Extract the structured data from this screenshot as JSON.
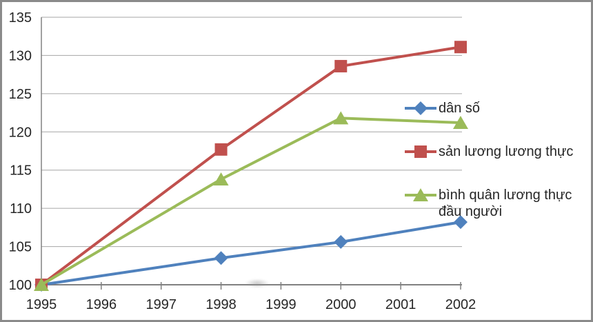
{
  "chart_data": {
    "type": "line",
    "title": "",
    "xlabel": "",
    "ylabel": "",
    "x": [
      1995,
      1998,
      2000,
      2002
    ],
    "series": [
      {
        "name": "dân số",
        "slug": "dan-so",
        "color": "#4F81BD",
        "marker": "diamond",
        "values": [
          100,
          103.5,
          105.6,
          108.2
        ]
      },
      {
        "name": "sản lương lương thực",
        "slug": "san-luong-luong-thuc",
        "color": "#C0504D",
        "marker": "square",
        "values": [
          100,
          117.7,
          128.6,
          131.1
        ]
      },
      {
        "name": "bình quân lương thực đầu người",
        "slug": "binh-quan-luong-thuc-dau-nguoi",
        "color": "#9BBB59",
        "marker": "triangle",
        "values": [
          100,
          113.8,
          121.8,
          121.2
        ]
      }
    ],
    "x_ticks": [
      1995,
      1996,
      1997,
      1998,
      1999,
      2000,
      2001,
      2002
    ],
    "y_ticks": [
      100,
      105,
      110,
      115,
      120,
      125,
      130,
      135
    ],
    "ylim": [
      100,
      135
    ],
    "xlim": [
      1995,
      2002
    ],
    "grid": true,
    "legend_position": "right-inside",
    "axis_color": "#808080",
    "gridline_color": "#a6a6a6",
    "text_color": "#262626"
  }
}
